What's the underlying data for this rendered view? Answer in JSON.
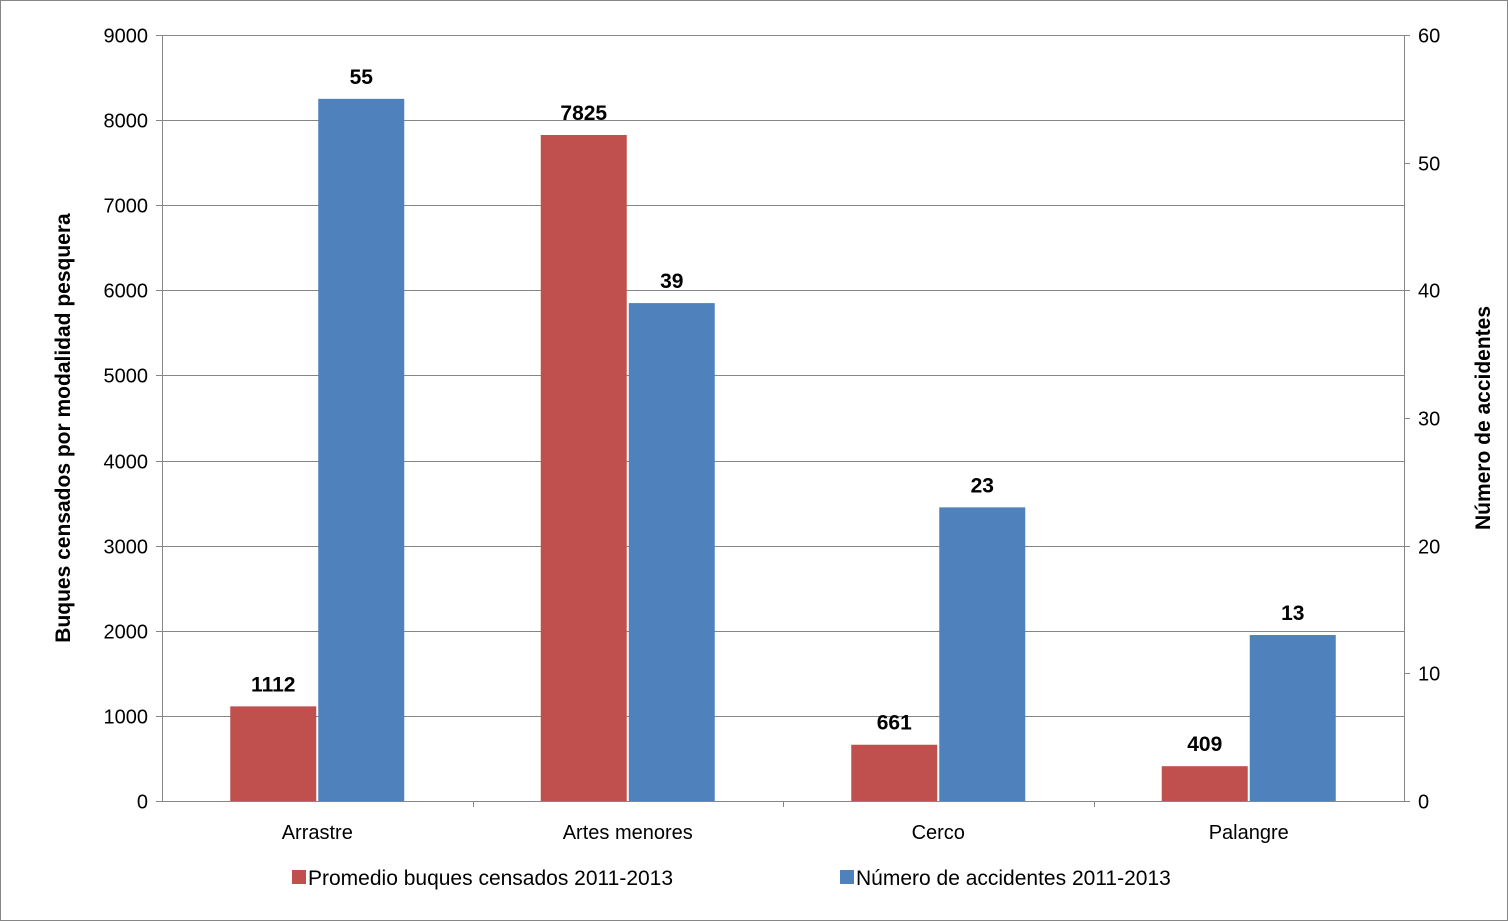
{
  "chart_data": {
    "type": "bar",
    "categories": [
      "Arrastre",
      "Artes menores",
      "Cerco",
      "Palangre"
    ],
    "series": [
      {
        "name": "Promedio buques censados 2011-2013",
        "values": [
          1112,
          7825,
          661,
          409
        ],
        "color": "#C0504D",
        "axis": "left"
      },
      {
        "name": "Número de accidentes 2011-2013",
        "values": [
          55,
          39,
          23,
          13
        ],
        "color": "#4F81BD",
        "axis": "right"
      }
    ],
    "ylabel_left": "Buques censados por modalidad pesquera",
    "ylabel_right": "Número de accidentes",
    "ylim_left": [
      0,
      9000
    ],
    "ylim_right": [
      0,
      60
    ],
    "yticks_left": [
      0,
      1000,
      2000,
      3000,
      4000,
      5000,
      6000,
      7000,
      8000,
      9000
    ],
    "yticks_right": [
      0,
      10,
      20,
      30,
      40,
      50,
      60
    ],
    "grid": true,
    "legend_position": "bottom"
  }
}
